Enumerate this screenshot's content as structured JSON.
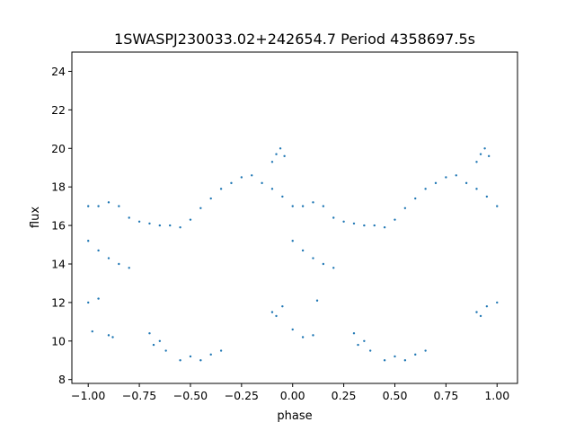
{
  "chart_data": {
    "type": "scatter",
    "title": "1SWASPJ230033.02+242654.7 Period 4358697.5s",
    "xlabel": "phase",
    "ylabel": "flux",
    "xlim": [
      -1.08,
      1.1
    ],
    "ylim": [
      7.8,
      25.0
    ],
    "xticks": [
      -1.0,
      -0.75,
      -0.5,
      -0.25,
      0.0,
      0.25,
      0.5,
      0.75,
      1.0
    ],
    "xtick_labels": [
      "−1.00",
      "−0.75",
      "−0.50",
      "−0.25",
      "0.00",
      "0.25",
      "0.50",
      "0.75",
      "1.00"
    ],
    "yticks": [
      8,
      10,
      12,
      14,
      16,
      18,
      20,
      22,
      24
    ],
    "ytick_labels": [
      "8",
      "10",
      "12",
      "14",
      "16",
      "18",
      "20",
      "22",
      "24"
    ],
    "grid": false,
    "point_color": "#1f77b4",
    "series": [
      {
        "description": "folded light curve, shown twice over phase -1..1",
        "x": [
          -1.0,
          -0.95,
          -0.9,
          -0.85,
          -0.8,
          -0.75,
          -0.7,
          -0.65,
          -0.6,
          -0.55,
          -0.5,
          -0.45,
          -0.4,
          -0.35,
          -0.3,
          -0.25,
          -0.2,
          -0.15,
          -0.1,
          -0.05,
          0.0,
          0.05,
          0.1,
          0.15,
          0.2,
          0.25,
          0.3,
          0.35,
          0.4,
          0.45,
          0.5,
          0.55,
          0.6,
          0.65,
          0.7,
          0.75,
          0.8,
          0.85,
          0.9,
          0.95,
          1.0
        ],
        "y": [
          17.0,
          17.0,
          17.2,
          17.0,
          16.4,
          16.2,
          16.1,
          16.0,
          16.0,
          15.9,
          16.3,
          16.9,
          17.4,
          17.9,
          18.2,
          18.5,
          18.6,
          18.2,
          17.9,
          17.5,
          17.0,
          17.0,
          17.2,
          17.0,
          16.4,
          16.2,
          16.1,
          16.0,
          16.0,
          15.9,
          16.3,
          16.9,
          17.4,
          17.9,
          18.2,
          18.5,
          18.6,
          18.2,
          17.9,
          17.5,
          17.0
        ]
      },
      {
        "description": "low branch",
        "x": [
          -1.0,
          -0.95,
          -0.9,
          -0.85,
          -0.8,
          0.0,
          0.05,
          0.1,
          0.15,
          0.2
        ],
        "y": [
          15.2,
          14.7,
          14.3,
          14.0,
          13.8,
          15.2,
          14.7,
          14.3,
          14.0,
          13.8
        ]
      },
      {
        "description": "bright excursion",
        "x": [
          -0.1,
          -0.08,
          -0.06,
          -0.04,
          0.9,
          0.92,
          0.94,
          0.96
        ],
        "y": [
          19.3,
          19.7,
          20.0,
          19.6,
          19.3,
          19.7,
          20.0,
          19.6
        ]
      },
      {
        "description": "faint outliers",
        "x": [
          -1.0,
          -0.98,
          -0.95,
          -0.9,
          -0.88,
          -0.7,
          -0.68,
          -0.65,
          -0.62,
          -0.55,
          -0.5,
          -0.45,
          -0.4,
          -0.35,
          -0.1,
          -0.08,
          -0.05,
          0.0,
          0.05,
          0.1,
          0.12,
          0.3,
          0.32,
          0.35,
          0.38,
          0.45,
          0.5,
          0.55,
          0.6,
          0.65,
          0.9,
          0.92,
          0.95,
          1.0
        ],
        "y": [
          12.0,
          10.5,
          12.2,
          10.3,
          10.2,
          10.4,
          9.8,
          10.0,
          9.5,
          9.0,
          9.2,
          9.0,
          9.3,
          9.5,
          11.5,
          11.3,
          11.8,
          10.6,
          10.2,
          10.3,
          12.1,
          10.4,
          9.8,
          10.0,
          9.5,
          9.0,
          9.2,
          9.0,
          9.3,
          9.5,
          11.5,
          11.3,
          11.8,
          12.0
        ]
      }
    ]
  }
}
